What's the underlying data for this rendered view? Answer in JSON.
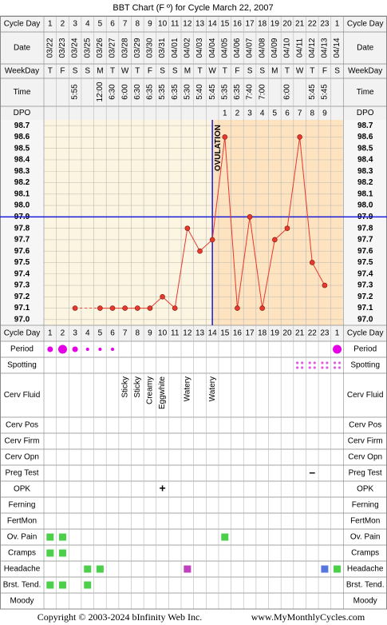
{
  "title": "BBT Chart (F º) for Cycle March 22, 2007",
  "footer": {
    "copyright": "Copyright © 2003-2024 bInfinity Web Inc.",
    "url": "www.MyMonthlyCycles.com"
  },
  "chart_data": {
    "type": "line",
    "row_labels": {
      "cycle_day": "Cycle Day",
      "date": "Date",
      "weekday": "WeekDay",
      "time": "Time",
      "dpo": "DPO"
    },
    "cycle_days": [
      1,
      2,
      3,
      4,
      5,
      6,
      7,
      8,
      9,
      10,
      11,
      12,
      13,
      14,
      15,
      16,
      17,
      18,
      19,
      20,
      21,
      22,
      23,
      1
    ],
    "dates": [
      "03/22",
      "03/23",
      "03/24",
      "03/25",
      "03/26",
      "03/27",
      "03/28",
      "03/29",
      "03/30",
      "03/31",
      "04/01",
      "04/02",
      "04/03",
      "04/04",
      "04/05",
      "04/06",
      "04/07",
      "04/08",
      "04/09",
      "04/10",
      "04/11",
      "04/12",
      "04/13",
      "04/14"
    ],
    "weekdays": [
      "T",
      "F",
      "S",
      "S",
      "M",
      "T",
      "W",
      "T",
      "F",
      "S",
      "S",
      "M",
      "T",
      "W",
      "T",
      "F",
      "S",
      "S",
      "M",
      "T",
      "W",
      "T",
      "F",
      "S"
    ],
    "times": [
      null,
      null,
      "5:55",
      null,
      "12:00",
      "6:30",
      "6:00",
      "6:30",
      "6:35",
      "5:35",
      "6:35",
      "5:30",
      "5:40",
      "5:45",
      "5:35",
      "6:35",
      "7:40",
      "7:00",
      null,
      "6:00",
      null,
      "5:45",
      "5:45",
      null
    ],
    "dpo": [
      null,
      null,
      null,
      null,
      null,
      null,
      null,
      null,
      null,
      null,
      null,
      null,
      null,
      null,
      1,
      2,
      3,
      4,
      5,
      6,
      7,
      8,
      9,
      null
    ],
    "values": [
      null,
      null,
      97.1,
      null,
      97.1,
      97.1,
      97.1,
      97.1,
      97.1,
      97.2,
      97.1,
      97.8,
      97.6,
      97.7,
      98.6,
      97.1,
      97.9,
      97.1,
      97.7,
      97.8,
      98.6,
      97.5,
      97.3,
      null
    ],
    "color": "#e8382d",
    "ylim": [
      96.95,
      98.75
    ],
    "yticks": [
      {
        "value": 97,
        "label": "97.0"
      },
      97.1,
      97.2,
      97.3,
      97.4,
      97.5,
      97.6,
      97.7,
      97.8,
      97.9,
      {
        "value": 98,
        "label": "98.0"
      },
      98.1,
      98.2,
      98.3,
      98.4,
      98.5,
      98.6,
      98.7
    ],
    "grid": true,
    "coverline": 97.9,
    "coverline_color": "#1a1adb",
    "ovulation": {
      "label": "OVULATION",
      "cycle_day": 14,
      "color": "#1a1adb"
    }
  },
  "symptoms": [
    {
      "label": "Period",
      "kind": "dot",
      "color": "#e600e6",
      "cells": [
        "medium",
        "large",
        "medium",
        "small",
        "small",
        "small",
        null,
        null,
        null,
        null,
        null,
        null,
        null,
        null,
        null,
        null,
        null,
        null,
        null,
        null,
        null,
        null,
        null,
        "large"
      ]
    },
    {
      "label": "Spotting",
      "kind": "spots",
      "color": "#e060e0",
      "cells": [
        null,
        null,
        null,
        null,
        null,
        null,
        null,
        null,
        null,
        null,
        null,
        null,
        null,
        null,
        null,
        null,
        null,
        null,
        null,
        null,
        true,
        true,
        true,
        true
      ]
    },
    {
      "label": "Cerv Fluid",
      "kind": "text",
      "color": "#000000",
      "cells": [
        null,
        null,
        null,
        null,
        null,
        null,
        "Sticky",
        "Sticky",
        "Creamy",
        "Eggwhite",
        null,
        "Watery",
        null,
        "Watery",
        null,
        null,
        null,
        null,
        null,
        null,
        null,
        null,
        null,
        null
      ]
    },
    {
      "label": "Cerv Pos",
      "kind": "square",
      "cells": [
        null,
        null,
        null,
        null,
        null,
        null,
        null,
        null,
        null,
        null,
        null,
        null,
        null,
        null,
        null,
        null,
        null,
        null,
        null,
        null,
        null,
        null,
        null,
        null
      ]
    },
    {
      "label": "Cerv Firm",
      "kind": "square",
      "cells": [
        null,
        null,
        null,
        null,
        null,
        null,
        null,
        null,
        null,
        null,
        null,
        null,
        null,
        null,
        null,
        null,
        null,
        null,
        null,
        null,
        null,
        null,
        null,
        null
      ]
    },
    {
      "label": "Cerv Opn",
      "kind": "square",
      "cells": [
        null,
        null,
        null,
        null,
        null,
        null,
        null,
        null,
        null,
        null,
        null,
        null,
        null,
        null,
        null,
        null,
        null,
        null,
        null,
        null,
        null,
        null,
        null,
        null
      ]
    },
    {
      "label": "Preg Test",
      "kind": "symbol",
      "color": "#8b3fb5",
      "cells": [
        null,
        null,
        null,
        null,
        null,
        null,
        null,
        null,
        null,
        null,
        null,
        null,
        null,
        null,
        null,
        null,
        null,
        null,
        null,
        null,
        null,
        "–",
        null,
        null
      ]
    },
    {
      "label": "OPK",
      "kind": "symbol",
      "color": "#8b3fb5",
      "cells": [
        null,
        null,
        null,
        null,
        null,
        null,
        null,
        null,
        null,
        "+",
        null,
        null,
        null,
        null,
        null,
        null,
        null,
        null,
        null,
        null,
        null,
        null,
        null,
        null
      ]
    },
    {
      "label": "Ferning",
      "kind": "square",
      "cells": [
        null,
        null,
        null,
        null,
        null,
        null,
        null,
        null,
        null,
        null,
        null,
        null,
        null,
        null,
        null,
        null,
        null,
        null,
        null,
        null,
        null,
        null,
        null,
        null
      ]
    },
    {
      "label": "FertMon",
      "kind": "square",
      "cells": [
        null,
        null,
        null,
        null,
        null,
        null,
        null,
        null,
        null,
        null,
        null,
        null,
        null,
        null,
        null,
        null,
        null,
        null,
        null,
        null,
        null,
        null,
        null,
        null
      ]
    },
    {
      "label": "Ov. Pain",
      "kind": "square",
      "cells": [
        "#4cd04c",
        "#4cd04c",
        null,
        null,
        null,
        null,
        null,
        null,
        null,
        null,
        null,
        null,
        null,
        null,
        "#4cd04c",
        null,
        null,
        null,
        null,
        null,
        null,
        null,
        null,
        null
      ]
    },
    {
      "label": "Cramps",
      "kind": "square",
      "cells": [
        "#4cd04c",
        "#4cd04c",
        null,
        null,
        null,
        null,
        null,
        null,
        null,
        null,
        null,
        null,
        null,
        null,
        null,
        null,
        null,
        null,
        null,
        null,
        null,
        null,
        null,
        null
      ]
    },
    {
      "label": "Headache",
      "kind": "square",
      "cells": [
        null,
        null,
        null,
        "#4cd04c",
        "#4cd04c",
        null,
        null,
        null,
        null,
        null,
        null,
        "#c040c0",
        null,
        null,
        null,
        null,
        null,
        null,
        null,
        null,
        null,
        null,
        "#5577dd",
        "#4cd04c"
      ]
    },
    {
      "label": "Brst. Tend.",
      "kind": "square",
      "cells": [
        "#4cd04c",
        "#4cd04c",
        null,
        "#4cd04c",
        null,
        null,
        null,
        null,
        null,
        null,
        null,
        null,
        null,
        null,
        null,
        null,
        null,
        null,
        null,
        null,
        null,
        null,
        null,
        null
      ]
    },
    {
      "label": "Moody",
      "kind": "square",
      "cells": [
        null,
        null,
        null,
        null,
        null,
        null,
        null,
        null,
        null,
        null,
        null,
        null,
        null,
        null,
        null,
        null,
        null,
        null,
        null,
        null,
        null,
        null,
        null,
        null
      ]
    }
  ]
}
